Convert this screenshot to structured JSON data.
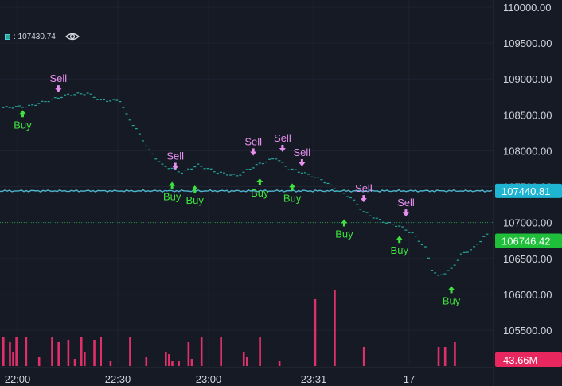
{
  "legend": {
    "label": ": 107430.74",
    "icon": "eye-icon"
  },
  "colors": {
    "background": "#161a25",
    "grid": "#1f2331",
    "axis_text": "#d1d4dc",
    "price_step": "#26a69a",
    "cyan_line": "#4fb6cf",
    "dotted_line": "#1f8f3a",
    "volume": "#e0306a",
    "buy": "#3ee23e",
    "sell": "#e98ff0",
    "cyan_tag": "#1fb4d2",
    "green_tag": "#1fbf3a",
    "volume_tag": "#e8275f"
  },
  "chart_data": {
    "type": "line",
    "ylim": [
      105800,
      110200
    ],
    "y_ticks": [
      "110000.00",
      "109500.00",
      "109000.00",
      "108500.00",
      "108000.00",
      "107500.00",
      "107000.00",
      "106500.00",
      "106000.00",
      "105500.00"
    ],
    "y_tick_values": [
      110000,
      109500,
      109000,
      108500,
      108000,
      107500,
      107000,
      106500,
      106000,
      105500
    ],
    "x_ticks": [
      "22:00",
      "22:30",
      "23:00",
      "23:31",
      "17"
    ],
    "x_tick_positions": [
      0,
      32,
      64,
      96,
      128
    ],
    "n_bars": 150,
    "price_series": {
      "name": "price",
      "points": [
        [
          0,
          108600
        ],
        [
          8,
          108620
        ],
        [
          14,
          108700
        ],
        [
          20,
          108780
        ],
        [
          26,
          108800
        ],
        [
          30,
          108700
        ],
        [
          36,
          108700
        ],
        [
          38,
          108500
        ],
        [
          41,
          108300
        ],
        [
          45,
          108000
        ],
        [
          49,
          107800
        ],
        [
          55,
          107700
        ],
        [
          60,
          107800
        ],
        [
          66,
          107700
        ],
        [
          72,
          107650
        ],
        [
          78,
          107800
        ],
        [
          84,
          107900
        ],
        [
          88,
          107750
        ],
        [
          92,
          107700
        ],
        [
          98,
          107600
        ],
        [
          103,
          107450
        ],
        [
          107,
          107350
        ],
        [
          111,
          107150
        ],
        [
          115,
          107050
        ],
        [
          118,
          107000
        ],
        [
          122,
          106950
        ],
        [
          126,
          106850
        ],
        [
          130,
          106650
        ],
        [
          132,
          106350
        ],
        [
          134,
          106250
        ],
        [
          138,
          106350
        ],
        [
          141,
          106550
        ],
        [
          145,
          106650
        ],
        [
          148,
          106800
        ],
        [
          150,
          106850
        ]
      ]
    },
    "cyan_line_value": 107440.81,
    "dotted_line_value": 107000,
    "price_tags": [
      {
        "value": 107440.81,
        "label": "107440.81",
        "color_key": "cyan_tag"
      },
      {
        "value": 106746.42,
        "label": "106746.42",
        "color_key": "green_tag"
      }
    ],
    "volume_tag": {
      "label": "43.66M"
    },
    "volume": [
      12,
      0,
      10,
      6,
      12,
      0,
      0,
      12,
      0,
      0,
      0,
      4,
      0,
      0,
      0,
      12,
      0,
      10,
      0,
      0,
      11,
      0,
      3,
      0,
      12,
      6,
      0,
      0,
      11,
      0,
      12,
      0,
      0,
      2,
      0,
      0,
      0,
      0,
      0,
      12,
      0,
      0,
      0,
      0,
      4,
      0,
      0,
      0,
      0,
      0,
      6,
      5,
      2,
      0,
      2,
      0,
      0,
      10,
      3,
      0,
      0,
      12,
      0,
      0,
      0,
      0,
      0,
      12,
      0,
      0,
      0,
      0,
      0,
      0,
      6,
      4,
      0,
      0,
      0,
      12,
      0,
      0,
      0,
      0,
      0,
      2,
      0,
      0,
      0,
      0,
      0,
      0,
      0,
      0,
      0,
      0,
      28,
      0,
      0,
      0,
      0,
      0,
      32,
      0,
      0,
      0,
      0,
      0,
      0,
      0,
      0,
      8,
      0,
      0,
      0,
      0,
      0,
      0,
      0,
      0,
      0,
      0,
      0,
      0,
      0,
      0,
      0,
      0,
      0,
      0,
      0,
      0,
      0,
      0,
      8,
      0,
      8,
      0,
      0,
      10,
      0,
      0,
      0,
      0,
      0,
      0,
      0,
      0,
      0,
      0,
      0
    ],
    "signals": [
      {
        "type": "Sell",
        "x": 17,
        "value": 108780
      },
      {
        "type": "Buy",
        "x": 6,
        "value": 108600
      },
      {
        "type": "Sell",
        "x": 53,
        "value": 107700
      },
      {
        "type": "Buy",
        "x": 52,
        "value": 107600
      },
      {
        "type": "Buy",
        "x": 59,
        "value": 107550
      },
      {
        "type": "Sell",
        "x": 77,
        "value": 107900
      },
      {
        "type": "Buy",
        "x": 79,
        "value": 107650
      },
      {
        "type": "Sell",
        "x": 86,
        "value": 107950
      },
      {
        "type": "Sell",
        "x": 92,
        "value": 107750
      },
      {
        "type": "Buy",
        "x": 89,
        "value": 107580
      },
      {
        "type": "Sell",
        "x": 111,
        "value": 107250
      },
      {
        "type": "Buy",
        "x": 105,
        "value": 107080
      },
      {
        "type": "Sell",
        "x": 124,
        "value": 107050
      },
      {
        "type": "Buy",
        "x": 122,
        "value": 106850
      },
      {
        "type": "Buy",
        "x": 138,
        "value": 106150
      }
    ]
  }
}
